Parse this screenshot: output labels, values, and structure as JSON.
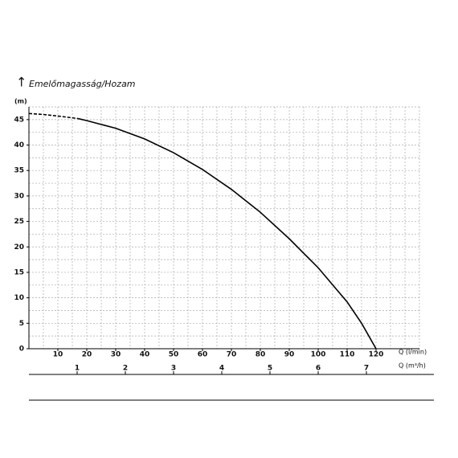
{
  "chart_data": {
    "type": "line",
    "ylabel": "Emelőmagasság/Hozam",
    "yunit": "(m)",
    "xlabel": "Q (l/min)",
    "x2label": "Q (m³/h)",
    "xlim": [
      0,
      135
    ],
    "ylim": [
      0,
      47.5
    ],
    "xticks": [
      10,
      20,
      30,
      40,
      50,
      60,
      70,
      80,
      90,
      100,
      110,
      120
    ],
    "yticks": [
      0,
      5,
      10,
      15,
      20,
      25,
      30,
      35,
      40,
      45
    ],
    "x2lim": [
      0,
      8.1
    ],
    "x2ticks": [
      1,
      2,
      3,
      4,
      5,
      6,
      7
    ],
    "grid": true,
    "grid_step_x": 5,
    "grid_step_y": 2.5,
    "color": "#000000",
    "series": [
      {
        "style": "dashed",
        "x": [
          0,
          5,
          10,
          17
        ],
        "values": [
          46.2,
          46.0,
          45.7,
          45.2
        ]
      },
      {
        "style": "solid",
        "x": [
          17,
          20,
          30,
          40,
          50,
          60,
          70,
          80,
          90,
          100,
          110,
          115,
          120
        ],
        "values": [
          45.2,
          44.8,
          43.3,
          41.2,
          38.5,
          35.2,
          31.3,
          26.8,
          21.6,
          15.9,
          9.2,
          5.0,
          0
        ]
      }
    ]
  }
}
